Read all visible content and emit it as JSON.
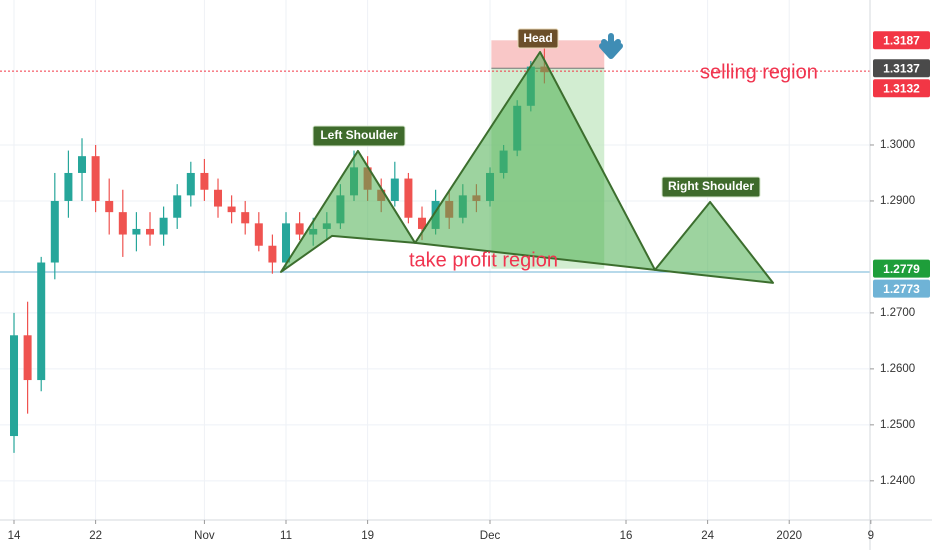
{
  "chart_data": {
    "type": "candlestick",
    "x": [
      0,
      1,
      2,
      3,
      4,
      5,
      6,
      7,
      8,
      9,
      10,
      11,
      12,
      13,
      14,
      15,
      16,
      17,
      18,
      19,
      20,
      21,
      22,
      23,
      24,
      25,
      26,
      27,
      28,
      29,
      30,
      31,
      32,
      33,
      34,
      35,
      36,
      37,
      38,
      39
    ],
    "series": {
      "open": [
        1.248,
        1.266,
        1.258,
        1.279,
        1.29,
        1.295,
        1.298,
        1.29,
        1.288,
        1.284,
        1.285,
        1.284,
        1.287,
        1.291,
        1.295,
        1.292,
        1.289,
        1.288,
        1.286,
        1.282,
        1.279,
        1.286,
        1.284,
        1.285,
        1.286,
        1.291,
        1.296,
        1.292,
        1.29,
        1.294,
        1.287,
        1.285,
        1.29,
        1.287,
        1.291,
        1.29,
        1.295,
        1.299,
        1.307,
        1.314
      ],
      "high": [
        1.27,
        1.272,
        1.28,
        1.295,
        1.299,
        1.3012,
        1.3,
        1.294,
        1.292,
        1.288,
        1.288,
        1.289,
        1.293,
        1.297,
        1.2975,
        1.294,
        1.291,
        1.29,
        1.288,
        1.284,
        1.288,
        1.288,
        1.287,
        1.288,
        1.293,
        1.299,
        1.298,
        1.294,
        1.297,
        1.295,
        1.289,
        1.292,
        1.292,
        1.293,
        1.293,
        1.296,
        1.3,
        1.308,
        1.315,
        1.3175
      ],
      "low": [
        1.245,
        1.252,
        1.256,
        1.276,
        1.287,
        1.29,
        1.288,
        1.284,
        1.28,
        1.281,
        1.282,
        1.282,
        1.285,
        1.289,
        1.29,
        1.287,
        1.286,
        1.284,
        1.281,
        1.277,
        1.278,
        1.283,
        1.282,
        1.283,
        1.285,
        1.29,
        1.29,
        1.288,
        1.289,
        1.286,
        1.283,
        1.284,
        1.285,
        1.286,
        1.288,
        1.289,
        1.294,
        1.298,
        1.306,
        1.311
      ],
      "close": [
        1.266,
        1.258,
        1.279,
        1.29,
        1.295,
        1.298,
        1.29,
        1.288,
        1.284,
        1.285,
        1.284,
        1.287,
        1.291,
        1.295,
        1.292,
        1.289,
        1.288,
        1.286,
        1.282,
        1.279,
        1.286,
        1.284,
        1.285,
        1.286,
        1.291,
        1.296,
        1.292,
        1.29,
        1.294,
        1.287,
        1.285,
        1.29,
        1.287,
        1.291,
        1.29,
        1.295,
        1.299,
        1.307,
        1.314,
        1.313
      ]
    },
    "up_color": "#26a69a",
    "down_color": "#ef5350",
    "xlim": [
      -1.03,
      62.94
    ],
    "xticks": [
      {
        "value": 0,
        "label": "14"
      },
      {
        "value": 6,
        "label": "22"
      },
      {
        "value": 14,
        "label": "Nov"
      },
      {
        "value": 20,
        "label": "11"
      },
      {
        "value": 26,
        "label": "19"
      },
      {
        "value": 35,
        "label": "Dec"
      },
      {
        "value": 45,
        "label": "16"
      },
      {
        "value": 51,
        "label": "24"
      },
      {
        "value": 57,
        "label": "2020"
      },
      {
        "value": 63,
        "label": "9"
      }
    ],
    "ylim": [
      1.233,
      1.3259
    ],
    "yticks": [
      {
        "value": 1.24,
        "label": "1.2400"
      },
      {
        "value": 1.25,
        "label": "1.2500"
      },
      {
        "value": 1.26,
        "label": "1.2600"
      },
      {
        "value": 1.27,
        "label": "1.2700"
      },
      {
        "value": 1.29,
        "label": "1.2900"
      },
      {
        "value": 1.3,
        "label": "1.3000"
      }
    ],
    "grid": true,
    "hlines": [
      {
        "value": 1.3132,
        "color": "#f23645",
        "dashed": true
      },
      {
        "value": 1.2773,
        "color": "#6fb3d6",
        "dashed": false
      }
    ],
    "price_labels": [
      {
        "value": 1.3187,
        "color": "#f23645"
      },
      {
        "value": 1.3137,
        "color": "#4a4a4a"
      },
      {
        "value": 1.3132,
        "color": "#f23645"
      },
      {
        "value": 1.2779,
        "color": "#1e9e3a"
      },
      {
        "value": 1.2773,
        "color": "#6fb3d6"
      }
    ],
    "position": {
      "x_start": 35.1,
      "x_end": 43.4,
      "stop": 1.3187,
      "entry": 1.3137,
      "target": 1.2779
    },
    "pattern": [
      {
        "points": [
          [
            19.63,
            1.27732
          ],
          [
            25.29,
            1.29893
          ],
          [
            29.49,
            1.2825
          ],
          [
            23.38,
            1.28375
          ]
        ]
      },
      {
        "points": [
          [
            29.49,
            1.2825
          ],
          [
            38.68,
            1.31661
          ],
          [
            47.13,
            1.27768
          ]
        ]
      },
      {
        "points": [
          [
            47.13,
            1.27768
          ],
          [
            51.18,
            1.28982
          ],
          [
            55.81,
            1.27536
          ]
        ]
      }
    ],
    "annotations": [
      "Head",
      "Left Shoulder",
      "Right Shoulder",
      "selling region",
      "take profit region"
    ]
  }
}
